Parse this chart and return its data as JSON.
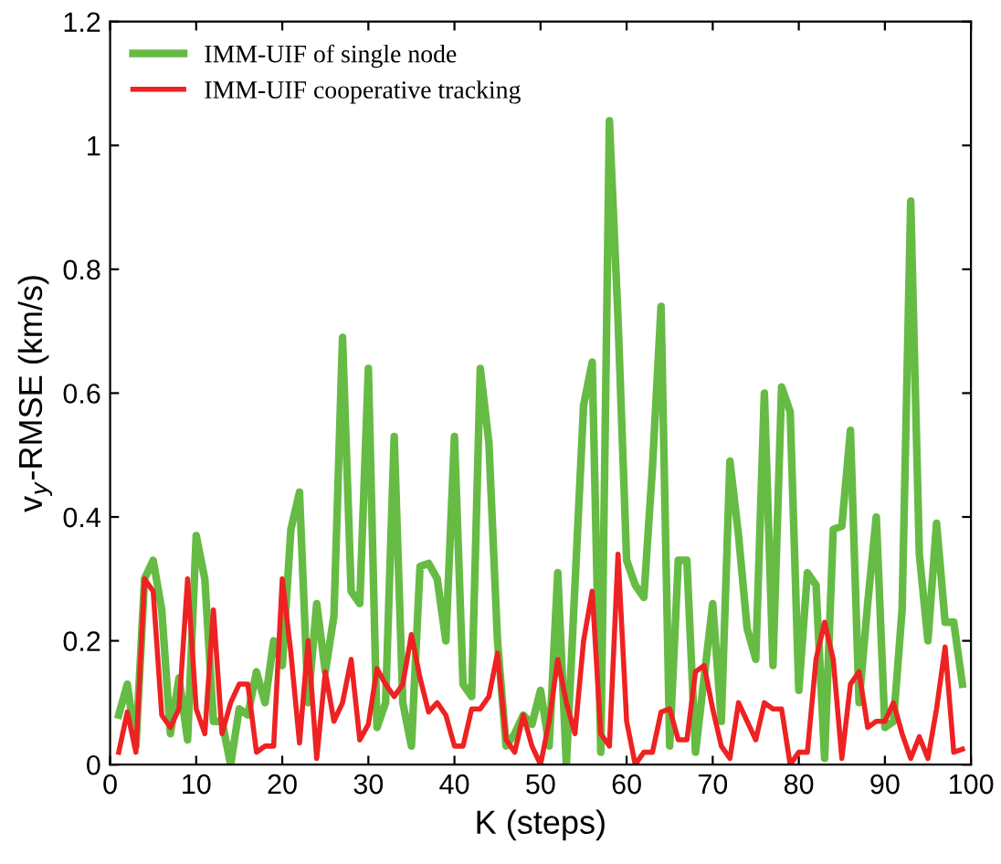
{
  "chart_data": {
    "type": "line",
    "xlabel": "K (steps)",
    "ylabel": "v$_{y}$-RMSE (km/s)",
    "x": [
      1,
      2,
      3,
      4,
      5,
      6,
      7,
      8,
      9,
      10,
      11,
      12,
      13,
      14,
      15,
      16,
      17,
      18,
      19,
      20,
      21,
      22,
      23,
      24,
      25,
      26,
      27,
      28,
      29,
      30,
      31,
      32,
      33,
      34,
      35,
      36,
      37,
      38,
      39,
      40,
      41,
      42,
      43,
      44,
      45,
      46,
      47,
      48,
      49,
      50,
      51,
      52,
      53,
      54,
      55,
      56,
      57,
      58,
      59,
      60,
      61,
      62,
      63,
      64,
      65,
      66,
      67,
      68,
      69,
      70,
      71,
      72,
      73,
      74,
      75,
      76,
      77,
      78,
      79,
      80,
      81,
      82,
      83,
      84,
      85,
      86,
      87,
      88,
      89,
      90,
      91,
      92,
      93,
      94,
      95,
      96,
      97,
      98,
      99
    ],
    "series": [
      {
        "name": "IMM-UIF of single node",
        "color": "#66bb44",
        "values": [
          0.08,
          0.13,
          0.03,
          0.3,
          0.33,
          0.25,
          0.05,
          0.14,
          0.04,
          0.37,
          0.3,
          0.07,
          0.07,
          0.0,
          0.09,
          0.08,
          0.15,
          0.1,
          0.2,
          0.16,
          0.38,
          0.44,
          0.1,
          0.26,
          0.15,
          0.24,
          0.69,
          0.28,
          0.26,
          0.64,
          0.06,
          0.1,
          0.53,
          0.1,
          0.03,
          0.32,
          0.325,
          0.3,
          0.2,
          0.53,
          0.13,
          0.11,
          0.64,
          0.52,
          0.2,
          0.03,
          0.05,
          0.08,
          0.065,
          0.12,
          0.03,
          0.31,
          0.0,
          0.29,
          0.58,
          0.65,
          0.02,
          1.04,
          0.72,
          0.33,
          0.29,
          0.27,
          0.48,
          0.74,
          0.03,
          0.33,
          0.33,
          0.02,
          0.14,
          0.26,
          0.07,
          0.49,
          0.37,
          0.22,
          0.17,
          0.6,
          0.16,
          0.61,
          0.57,
          0.12,
          0.31,
          0.29,
          0.01,
          0.38,
          0.385,
          0.54,
          0.1,
          0.26,
          0.4,
          0.06,
          0.07,
          0.25,
          0.91,
          0.34,
          0.2,
          0.39,
          0.23,
          0.23,
          0.13
        ]
      },
      {
        "name": "IMM-UIF cooperative tracking",
        "color": "#ee2222",
        "values": [
          0.02,
          0.085,
          0.02,
          0.3,
          0.28,
          0.08,
          0.06,
          0.09,
          0.3,
          0.09,
          0.05,
          0.25,
          0.05,
          0.1,
          0.13,
          0.13,
          0.02,
          0.03,
          0.03,
          0.3,
          0.18,
          0.035,
          0.2,
          0.01,
          0.15,
          0.07,
          0.1,
          0.17,
          0.04,
          0.065,
          0.155,
          0.13,
          0.11,
          0.13,
          0.21,
          0.14,
          0.085,
          0.1,
          0.08,
          0.03,
          0.03,
          0.09,
          0.09,
          0.11,
          0.18,
          0.04,
          0.02,
          0.08,
          0.03,
          0.0,
          0.07,
          0.17,
          0.1,
          0.05,
          0.2,
          0.28,
          0.05,
          0.03,
          0.34,
          0.07,
          0.0,
          0.02,
          0.02,
          0.085,
          0.09,
          0.04,
          0.04,
          0.15,
          0.16,
          0.09,
          0.03,
          0.01,
          0.1,
          0.07,
          0.04,
          0.1,
          0.09,
          0.09,
          0.0,
          0.02,
          0.02,
          0.17,
          0.23,
          0.17,
          0.01,
          0.13,
          0.15,
          0.06,
          0.07,
          0.07,
          0.1,
          0.05,
          0.01,
          0.045,
          0.01,
          0.09,
          0.19,
          0.02,
          0.025
        ]
      }
    ],
    "xlim": [
      0,
      100
    ],
    "xticks": [
      0,
      10,
      20,
      30,
      40,
      50,
      60,
      70,
      80,
      90,
      100
    ],
    "ylim": [
      0,
      1.2
    ],
    "yticks": [
      0,
      0.2,
      0.4,
      0.6,
      0.8,
      1,
      1.2
    ],
    "grid": false,
    "legend": "top left",
    "marker": "none",
    "line_style": "solid"
  }
}
